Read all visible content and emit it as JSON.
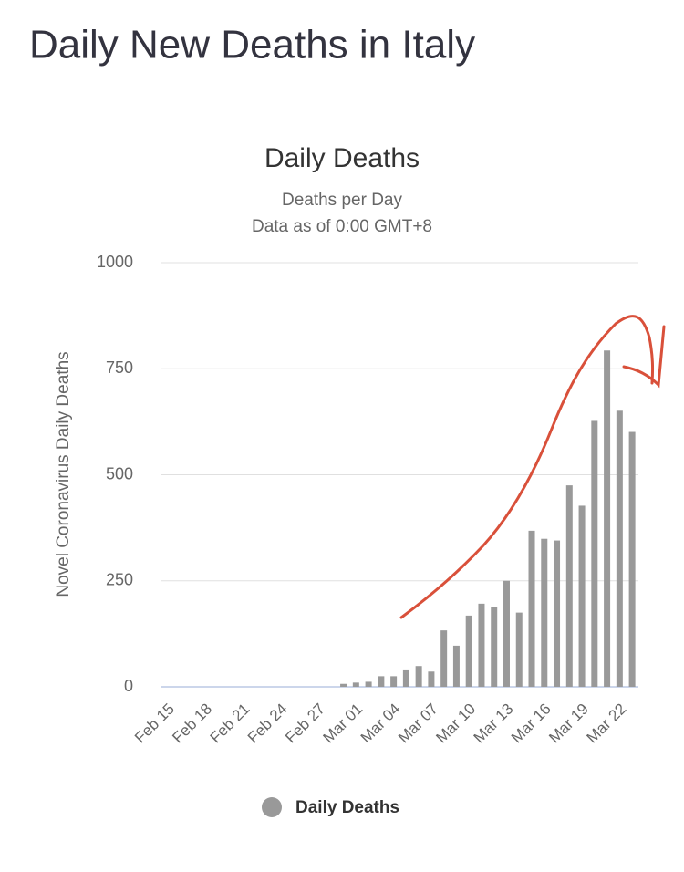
{
  "header": {
    "title": "Daily New Deaths in Italy"
  },
  "chart_data": {
    "type": "bar",
    "title": "Daily Deaths",
    "subtitle": [
      "Deaths per Day",
      "Data as of 0:00 GMT+8"
    ],
    "y_label": "Novel Coronavirus Daily Deaths",
    "categories": [
      "Feb 15",
      null,
      null,
      "Feb 18",
      null,
      null,
      "Feb 21",
      null,
      null,
      "Feb 24",
      null,
      null,
      "Feb 27",
      null,
      null,
      "Mar 01",
      null,
      null,
      "Mar 04",
      null,
      null,
      "Mar 07",
      null,
      null,
      "Mar 10",
      null,
      null,
      "Mar 13",
      null,
      null,
      "Mar 16",
      null,
      null,
      "Mar 19",
      null,
      null,
      "Mar 22",
      null
    ],
    "series": [
      {
        "name": "Daily Deaths",
        "color": "#999999",
        "values": [
          0,
          0,
          0,
          0,
          0,
          0,
          0,
          0,
          0,
          0,
          0,
          0,
          0,
          0,
          7,
          10,
          12,
          25,
          25,
          41,
          49,
          36,
          133,
          97,
          168,
          196,
          189,
          250,
          175,
          368,
          349,
          345,
          475,
          427,
          627,
          793,
          651,
          601
        ]
      }
    ],
    "ylim": [
      0,
      1000
    ],
    "yticks": [
      0,
      250,
      500,
      750,
      1000
    ],
    "grid": true,
    "legend": "bottom"
  }
}
